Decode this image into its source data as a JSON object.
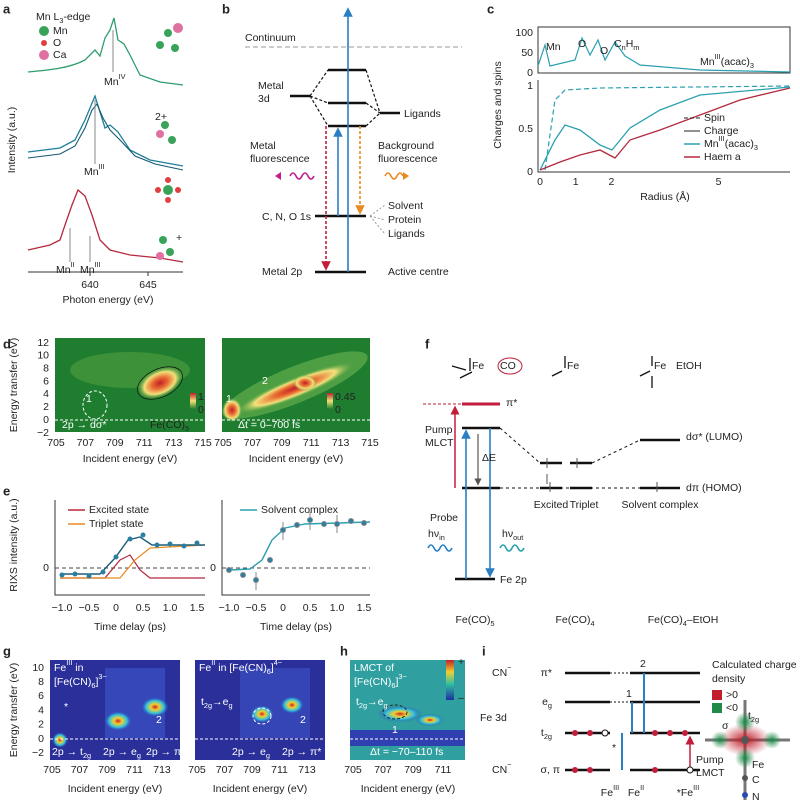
{
  "a": {
    "label": "a",
    "legend_title": [
      "Mn L",
      {
        "sub": "3"
      },
      "-edge"
    ],
    "legend": [
      "Mn",
      "O",
      "Ca"
    ],
    "y_label": "Intensity (a.u.)",
    "peaks": [
      [
        "Mn",
        {
          "sup": "IV"
        }
      ],
      [
        "Mn",
        {
          "sup": "III"
        }
      ],
      [
        "Mn",
        {
          "sup": "II"
        }
      ],
      [
        "Mn",
        {
          "sup": "III"
        }
      ]
    ],
    "charges": [
      "2+",
      "+"
    ],
    "x_ticks": [
      "640",
      "645"
    ],
    "x_label": "Photon energy (eV)"
  },
  "b": {
    "label": "b",
    "continuum": "Continuum",
    "metal_3d": [
      "Metal",
      "3d"
    ],
    "ligands": "Ligands",
    "metal_fluorescence": [
      "Metal",
      "fluorescence"
    ],
    "background_fluorescence": [
      "Background",
      "fluorescence"
    ],
    "core": "C, N, O 1s",
    "environment": [
      "Solvent",
      "Protein",
      "Ligands"
    ],
    "metal_2p": "Metal 2p",
    "active": "Active centre"
  },
  "c": {
    "label": "c",
    "atoms": [
      "Mn",
      "O",
      "O",
      [
        "C",
        {
          "sub": "n"
        },
        "H",
        {
          "sub": "m"
        }
      ]
    ],
    "molecule": [
      "Mn",
      {
        "sup": "III"
      },
      "(acac)",
      {
        "sub": "3"
      }
    ],
    "top_y_ticks": [
      "100",
      "50",
      "0"
    ],
    "bottom_y_ticks": [
      "1",
      "0.5",
      "0"
    ],
    "x_ticks": [
      "0",
      "1",
      "2",
      "5"
    ],
    "x_label": "Radius (Å)",
    "y_label": "Charges and spins",
    "legend": [
      "Spin",
      "Charge",
      [
        "Mn",
        {
          "sup": "III"
        },
        "(acac)",
        {
          "sub": "3"
        }
      ],
      "Haem a"
    ]
  },
  "d": {
    "label": "d",
    "y_label": "Energy transfer (eV)",
    "y_ticks": [
      "12",
      "10",
      "8",
      "6",
      "4",
      "2",
      "0",
      "−2"
    ],
    "left": {
      "x_ticks": [
        "705",
        "707",
        "709",
        "711",
        "713",
        "715"
      ],
      "x_label": "Incident energy (eV)",
      "peak": "1",
      "transition": "2p → dσ*",
      "sample": [
        "Fe(CO)",
        {
          "sub": "5"
        }
      ],
      "scale": [
        "1",
        "0"
      ]
    },
    "right": {
      "x_ticks": [
        "705",
        "707",
        "709",
        "711",
        "713",
        "715"
      ],
      "x_label": "Incident energy (eV)",
      "peaks": [
        "1",
        "2"
      ],
      "delay": "Δt = 0–700 fs",
      "scale": [
        "0.45",
        "0"
      ]
    }
  },
  "e": {
    "label": "e",
    "y_label": "RIXS intensity (a.u.)",
    "left": {
      "legend": [
        "Excited state",
        "Triplet state"
      ],
      "y_tick": "0",
      "x_ticks": [
        "−1.0",
        "−0.5",
        "0",
        "0.5",
        "1.0",
        "1.5"
      ],
      "x_label": "Time delay (ps)"
    },
    "right": {
      "legend": [
        "Solvent complex"
      ],
      "y_tick": "0",
      "x_ticks": [
        "−1.0",
        "−0.5",
        "0",
        "0.5",
        "1.0",
        "1.5"
      ],
      "x_label": "Time delay (ps)"
    }
  },
  "f": {
    "label": "f",
    "fe": [
      "Fe",
      "Fe",
      "Fe"
    ],
    "co": "CO",
    "etoh": "EtOH",
    "pi_star": "π*",
    "pump": [
      "Pump",
      "MLCT"
    ],
    "delta_e": "ΔE",
    "d_sigma": "dσ* (LUMO)",
    "d_pi": "dπ (HOMO)",
    "states": [
      "Excited",
      "Triplet",
      "Solvent complex"
    ],
    "probe": "Probe",
    "hv_in": [
      "hν",
      {
        "sub": "in"
      }
    ],
    "hv_out": [
      "hν",
      {
        "sub": "out"
      }
    ],
    "fe_2p": "Fe 2p",
    "species": [
      [
        "Fe(CO)",
        {
          "sub": "5"
        }
      ],
      [
        "Fe(CO)",
        {
          "sub": "4"
        }
      ],
      [
        "Fe(CO)",
        {
          "sub": "4"
        },
        "–EtOH"
      ]
    ]
  },
  "g": {
    "label": "g",
    "y_label": "Energy transfer (eV)",
    "y_ticks": [
      "10",
      "8",
      "6",
      "4",
      "2",
      "0",
      "−2"
    ],
    "left": {
      "title": [
        [
          "Fe",
          {
            "sup": "III"
          },
          " in"
        ],
        [
          "[Fe(CN)",
          {
            "sub": "6"
          },
          "]",
          {
            "sup": "3−"
          }
        ]
      ],
      "star": "*",
      "peak": "2",
      "transitions": [
        [
          "2p → t",
          {
            "sub": "2g"
          }
        ],
        [
          "2p → e",
          {
            "sub": "g"
          }
        ],
        "2p → π*"
      ],
      "x_ticks": [
        "705",
        "707",
        "709",
        "711",
        "713"
      ],
      "x_label": "Incident energy (eV)"
    },
    "right": {
      "title": [
        "Fe",
        {
          "sup": "II"
        },
        " in [Fe(CN)",
        {
          "sub": "6"
        },
        "]",
        {
          "sup": "4−"
        }
      ],
      "excitation": [
        "t",
        {
          "sub": "2g"
        },
        "→e",
        {
          "sub": "g"
        }
      ],
      "peak": "2",
      "transitions": [
        [
          "2p → e",
          {
            "sub": "g"
          }
        ],
        "2p → π*"
      ],
      "x_ticks": [
        "705",
        "707",
        "709",
        "711",
        "713"
      ],
      "x_label": "Incident energy (eV)"
    }
  },
  "h": {
    "label": "h",
    "title": [
      "LMCT of",
      [
        "[Fe(CN)",
        {
          "sub": "6"
        },
        "]",
        {
          "sup": "3−"
        }
      ]
    ],
    "excitation": [
      "t",
      {
        "sub": "2g"
      },
      "→e",
      {
        "sub": "g"
      }
    ],
    "peak": "1",
    "delay": "Δt = −70–110 fs",
    "scale": [
      "+",
      "–"
    ],
    "x_ticks": [
      "705",
      "707",
      "709",
      "711"
    ],
    "x_label": "Incident energy (eV)"
  },
  "i": {
    "label": "i",
    "cn_top": [
      "CN",
      {
        "sup": "−"
      }
    ],
    "fe_3d": "Fe 3d",
    "cn_bottom": [
      "CN",
      {
        "sup": "−"
      }
    ],
    "orbitals": [
      "π*",
      [
        "e",
        {
          "sub": "g"
        }
      ],
      [
        "t",
        {
          "sub": "2g"
        }
      ],
      "σ, π"
    ],
    "transitions": [
      "2",
      "1",
      "*"
    ],
    "pump": [
      "Pump",
      "LMCT"
    ],
    "species": [
      [
        "Fe",
        {
          "sup": "III"
        }
      ],
      [
        "Fe",
        {
          "sup": "II"
        }
      ],
      [
        "*Fe",
        {
          "sup": "III"
        }
      ]
    ],
    "density_title": [
      "Calculated charge",
      "density"
    ],
    "density_legend": [
      ">0",
      "<0"
    ],
    "density_labels": [
      [
        "t",
        {
          "sub": "2g"
        }
      ],
      "σ",
      "Fe",
      "C",
      "N"
    ]
  }
}
